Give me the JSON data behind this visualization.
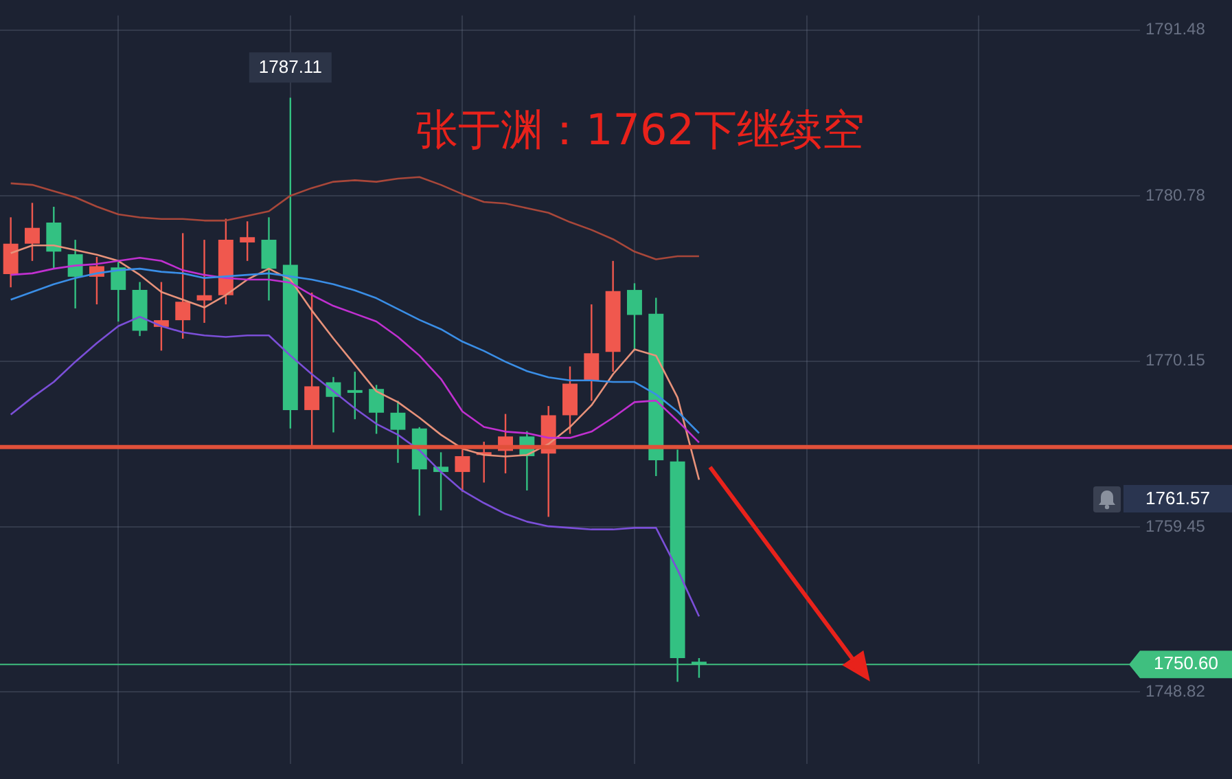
{
  "chart_data": {
    "type": "candlestick",
    "title": "张于渊：1762下继续空",
    "categories": [
      null,
      null,
      null,
      null,
      null,
      null,
      null,
      null,
      null,
      null,
      null,
      null,
      null,
      null,
      null,
      null,
      null,
      null,
      null,
      null,
      null,
      null,
      null,
      null,
      null,
      null,
      null,
      null,
      null,
      null,
      null,
      null,
      null,
      null,
      null,
      null,
      null,
      null,
      null,
      null,
      null,
      null,
      null,
      null,
      null,
      null,
      null,
      null,
      null,
      null,
      null,
      null,
      null
    ],
    "ohlc": [
      [
        1775.75,
        1779.41,
        1774.9,
        1777.71
      ],
      [
        1777.71,
        1780.34,
        1776.6,
        1778.73
      ],
      [
        1779.07,
        1780.09,
        1776.09,
        1777.2
      ],
      [
        1777.03,
        1777.96,
        1773.54,
        1775.58
      ],
      [
        1775.58,
        1776.86,
        1773.8,
        1776.26
      ],
      [
        1776.18,
        1776.52,
        1772.69,
        1774.73
      ],
      [
        1774.73,
        1775.24,
        1771.76,
        1772.1
      ],
      [
        1772.35,
        1775.24,
        1770.82,
        1772.78
      ],
      [
        1772.78,
        1778.39,
        1771.59,
        1773.97
      ],
      [
        1774.05,
        1777.96,
        1772.61,
        1774.39
      ],
      [
        1774.39,
        1779.32,
        1773.8,
        1777.96
      ],
      [
        1777.79,
        1779.15,
        1776.6,
        1778.13
      ],
      [
        1777.96,
        1779.41,
        1774.05,
        1776.09
      ],
      [
        1776.35,
        1787.11,
        1765.8,
        1766.99
      ],
      [
        1766.99,
        1774.56,
        1764.61,
        1768.52
      ],
      [
        1768.78,
        1769.12,
        1765.55,
        1767.84
      ],
      [
        1768.1,
        1769.46,
        1766.4,
        1768.1
      ],
      [
        1768.35,
        1768.61,
        1765.46,
        1766.82
      ],
      [
        1766.82,
        1767.59,
        1763.59,
        1765.72
      ],
      [
        1765.8,
        1765.89,
        1760.19,
        1763.17
      ],
      [
        1763.34,
        1764.27,
        1760.53,
        1763.0
      ],
      [
        1763.0,
        1764.44,
        1761.72,
        1764.02
      ],
      [
        1764.1,
        1764.95,
        1762.32,
        1764.27
      ],
      [
        1764.36,
        1766.74,
        1762.91,
        1765.29
      ],
      [
        1765.29,
        1765.63,
        1761.81,
        1764.02
      ],
      [
        1764.19,
        1767.25,
        1760.11,
        1766.65
      ],
      [
        1766.65,
        1769.8,
        1765.46,
        1768.69
      ],
      [
        1768.86,
        1773.8,
        1767.59,
        1770.65
      ],
      [
        1770.74,
        1776.6,
        1769.46,
        1774.65
      ],
      [
        1774.73,
        1775.16,
        1770.82,
        1773.12
      ],
      [
        1773.2,
        1774.22,
        1762.74,
        1763.76
      ],
      [
        1763.68,
        1764.44,
        1749.48,
        1751.01
      ],
      [
        1750.65,
        1751.01,
        1749.74,
        1750.6
      ],
      null,
      null,
      null,
      null,
      null,
      null,
      null,
      null,
      null,
      null,
      null,
      null,
      null,
      null,
      null,
      null,
      null,
      null,
      null,
      null
    ],
    "colors": [
      "#f0584e",
      "#f0584e",
      "#33c182",
      "#33c182",
      "#f0584e",
      "#33c182",
      "#33c182",
      "#f0584e",
      "#f0584e",
      "#f0584e",
      "#f0584e",
      "#f0584e",
      "#33c182",
      "#33c182",
      "#f0584e",
      "#33c182",
      "#33c182",
      "#33c182",
      "#33c182",
      "#33c182",
      "#33c182",
      "#f0584e",
      "#f0584e",
      "#f0584e",
      "#33c182",
      "#f0584e",
      "#f0584e",
      "#f0584e",
      "#f0584e",
      "#33c182",
      "#33c182",
      "#33c182",
      "#33c182",
      null,
      null,
      null,
      null,
      null,
      null,
      null,
      null,
      null,
      null,
      null,
      null,
      null,
      null,
      null,
      null,
      null,
      null,
      null,
      null
    ],
    "series": [
      {
        "type": "line",
        "color": "#a8473a",
        "values": [
          1781.6,
          1781.5,
          1781.1,
          1780.7,
          1780.1,
          1779.6,
          1779.4,
          1779.3,
          1779.3,
          1779.2,
          1779.2,
          1779.5,
          1779.8,
          1780.8,
          1781.3,
          1781.7,
          1781.8,
          1781.7,
          1781.9,
          1782.0,
          1781.5,
          1780.9,
          1780.4,
          1780.3,
          1780.0,
          1779.7,
          1779.1,
          1778.6,
          1778.0,
          1777.2,
          1776.7,
          1776.9,
          1776.9,
          null,
          null,
          null,
          null,
          null,
          null,
          null,
          null,
          null,
          null,
          null,
          null,
          null,
          null,
          null,
          null,
          null,
          null,
          null,
          null
        ]
      },
      {
        "type": "line",
        "color": "#3a8ee6",
        "values": [
          1774.1,
          1774.6,
          1775.1,
          1775.5,
          1775.8,
          1776.0,
          1776.1,
          1775.9,
          1775.8,
          1775.5,
          1775.6,
          1775.7,
          1775.8,
          1775.6,
          1775.4,
          1775.1,
          1774.7,
          1774.2,
          1773.5,
          1772.8,
          1772.2,
          1771.4,
          1770.8,
          1770.1,
          1769.5,
          1769.1,
          1768.9,
          1768.9,
          1768.8,
          1768.8,
          1768.0,
          1766.9,
          1765.5,
          null,
          null,
          null,
          null,
          null,
          null,
          null,
          null,
          null,
          null,
          null,
          null,
          null,
          null,
          null,
          null,
          null,
          null,
          null,
          null
        ]
      },
      {
        "type": "line",
        "color": "#c030d0",
        "values": [
          1775.7,
          1775.8,
          1776.1,
          1776.3,
          1776.4,
          1776.6,
          1776.8,
          1776.6,
          1776.0,
          1775.7,
          1775.5,
          1775.4,
          1775.4,
          1775.2,
          1774.4,
          1773.7,
          1773.2,
          1772.7,
          1771.7,
          1770.5,
          1769.0,
          1766.9,
          1765.9,
          1765.6,
          1765.5,
          1765.2,
          1765.2,
          1765.6,
          1766.5,
          1767.5,
          1767.6,
          1766.3,
          1764.9,
          null,
          null,
          null,
          null,
          null,
          null,
          null,
          null,
          null,
          null,
          null,
          null,
          null,
          null,
          null,
          null,
          null,
          null,
          null,
          null
        ]
      },
      {
        "type": "line",
        "color": "#7b4fd8",
        "values": [
          1766.7,
          1767.8,
          1768.8,
          1770.1,
          1771.3,
          1772.4,
          1773.0,
          1772.4,
          1772.0,
          1771.8,
          1771.7,
          1771.8,
          1771.8,
          1770.5,
          1769.3,
          1768.2,
          1767.1,
          1766.1,
          1765.4,
          1764.4,
          1763.0,
          1761.8,
          1761.0,
          1760.3,
          1759.8,
          1759.5,
          1759.4,
          1759.3,
          1759.3,
          1759.4,
          1759.4,
          1756.7,
          1753.7,
          null,
          null,
          null,
          null,
          null,
          null,
          null,
          null,
          null,
          null,
          null,
          null,
          null,
          null,
          null,
          null,
          null,
          null,
          null,
          null
        ]
      },
      {
        "type": "line",
        "color": "#e8927a",
        "values": [
          1777.1,
          1777.6,
          1777.6,
          1777.3,
          1777.0,
          1776.6,
          1775.7,
          1774.6,
          1774.1,
          1773.6,
          1774.4,
          1775.4,
          1776.1,
          1775.4,
          1773.4,
          1771.6,
          1769.9,
          1768.2,
          1767.5,
          1766.5,
          1765.4,
          1764.5,
          1764.1,
          1764.0,
          1764.1,
          1764.8,
          1765.9,
          1767.3,
          1769.3,
          1770.9,
          1770.5,
          1767.8,
          1762.5,
          null,
          null,
          null,
          null,
          null,
          null,
          null,
          null,
          null,
          null,
          null,
          null,
          null,
          null,
          null,
          null,
          null,
          null,
          null,
          null
        ]
      }
    ],
    "ylim": [
      1744.21,
      1792.42
    ],
    "yticks": [
      1748.82,
      1759.45,
      1770.15,
      1780.78,
      1791.48
    ],
    "grid": true,
    "legend": false,
    "tick_labels": "y",
    "ref_lines": [
      {
        "axis": "y",
        "value": 1764.61,
        "color": "#e0503a"
      },
      {
        "axis": "y",
        "value": 1750.6,
        "label": "1750.60",
        "color": "#3fbf7f"
      }
    ],
    "annotations": [
      {
        "text": "1787.11",
        "y": 1787.11
      },
      "1761.57"
    ]
  }
}
